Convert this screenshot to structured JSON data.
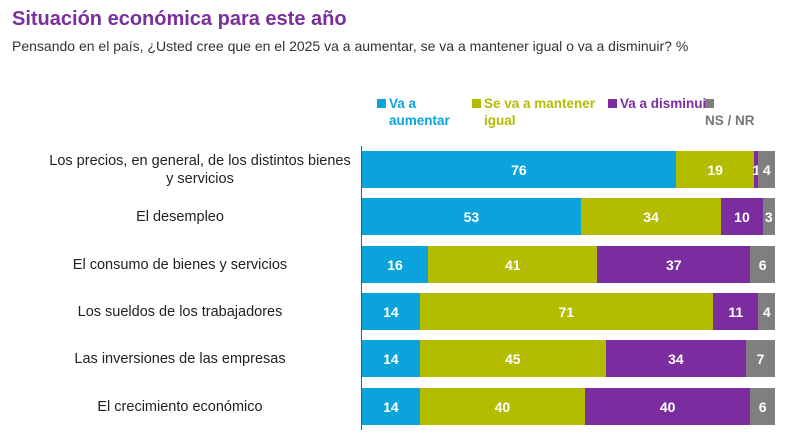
{
  "chart_data": {
    "type": "bar",
    "orientation": "horizontal-stacked",
    "title": "Situación económica para este año",
    "subtitle": "Pensando en el país, ¿Usted cree que en el 2025 va a aumentar, se va a mantener igual o va a disminuir? %",
    "categories": [
      "Los precios, en general, de los distintos bienes y servicios",
      "El desempleo",
      "El consumo de bienes y servicios",
      "Los sueldos de los trabajadores",
      "Las inversiones de las empresas",
      "El crecimiento económico"
    ],
    "series": [
      {
        "name": "Va a aumentar",
        "color": "#0ba3dc",
        "values": [
          76,
          53,
          16,
          14,
          14,
          14
        ]
      },
      {
        "name": "Se va a mantener igual",
        "color": "#b4bc00",
        "values": [
          19,
          34,
          41,
          71,
          45,
          40
        ]
      },
      {
        "name": "Va a disminuir",
        "color": "#7b2d9f",
        "values": [
          1,
          10,
          37,
          11,
          34,
          40
        ]
      },
      {
        "name": "NS / NR",
        "color": "#7f7f7f",
        "values": [
          4,
          3,
          6,
          4,
          7,
          6
        ]
      }
    ],
    "xlim": [
      0,
      100
    ],
    "legend": "top"
  }
}
